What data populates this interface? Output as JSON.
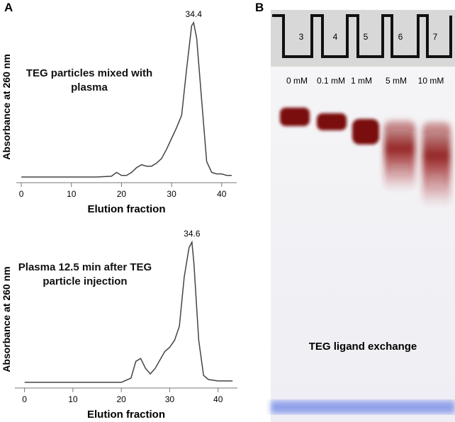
{
  "panel_labels": [
    "A",
    "B"
  ],
  "chart_data": [
    {
      "type": "line",
      "title": "TEG particles mixed with plasma",
      "x_label": "Elution fraction",
      "y_label": "Absorbance at 260 nm",
      "x": [
        0,
        5,
        10,
        15,
        18,
        19,
        20,
        21,
        22,
        23,
        24,
        25,
        26,
        27,
        28,
        29,
        30,
        31,
        32,
        33,
        34,
        34.4,
        35,
        36,
        37,
        38,
        39,
        40,
        41,
        42
      ],
      "series": [
        {
          "color": "#444444",
          "values": [
            0,
            0,
            0,
            0,
            0.5,
            3,
            1,
            1,
            3,
            6,
            8,
            7,
            7,
            9,
            12,
            18,
            25,
            32,
            40,
            70,
            98,
            100,
            90,
            50,
            10,
            3,
            2,
            2,
            1,
            1
          ]
        }
      ],
      "xlim": [
        -1,
        43
      ],
      "ylim": [
        0,
        100
      ],
      "xticks": [
        0,
        10,
        20,
        30,
        40
      ],
      "annotations": [
        {
          "x": 34.4,
          "label": "34.4"
        }
      ]
    },
    {
      "type": "line",
      "title": "Plasma 12.5 min after TEG particle injection",
      "x_label": "Elution fraction",
      "y_label": "Absorbance at 260 nm",
      "x": [
        0,
        5,
        10,
        15,
        20,
        22,
        23,
        24,
        25,
        26,
        27,
        28,
        29,
        30,
        31,
        32,
        33,
        34,
        34.6,
        35,
        36,
        37,
        38,
        40,
        43
      ],
      "series": [
        {
          "color": "#444444",
          "values": [
            0,
            0,
            0,
            0,
            0,
            3,
            15,
            17,
            10,
            6,
            10,
            16,
            22,
            25,
            30,
            40,
            75,
            96,
            100,
            85,
            30,
            5,
            2,
            1,
            1
          ]
        }
      ],
      "xlim": [
        -2,
        44
      ],
      "ylim": [
        0,
        100
      ],
      "xticks": [
        0,
        10,
        20,
        30,
        40
      ],
      "annotations": [
        {
          "x": 34.6,
          "label": "34.6"
        }
      ]
    }
  ],
  "gel": {
    "lanes": [
      "3",
      "4",
      "5",
      "6",
      "7"
    ],
    "concentrations": [
      "0 mM",
      "0.1 mM",
      "1 mM",
      "5 mM",
      "10 mM"
    ],
    "caption": "TEG ligand exchange"
  }
}
